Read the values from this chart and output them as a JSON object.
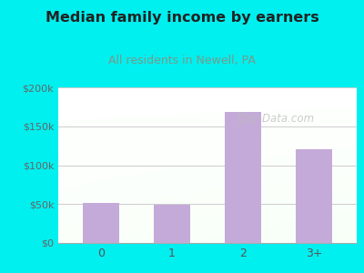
{
  "title": "Median family income by earners",
  "subtitle": "All residents in Newell, PA",
  "categories": [
    "0",
    "1",
    "2",
    "3+"
  ],
  "values": [
    52000,
    49000,
    168000,
    120000
  ],
  "bar_color": "#c4aad8",
  "title_color": "#222222",
  "subtitle_color": "#7a9a8a",
  "outer_bg": "#00efef",
  "ylim": [
    0,
    200000
  ],
  "yticks": [
    0,
    50000,
    100000,
    150000,
    200000
  ],
  "ytick_labels": [
    "$0",
    "$50k",
    "$100k",
    "$150k",
    "$200k"
  ],
  "watermark": "City-Data.com"
}
